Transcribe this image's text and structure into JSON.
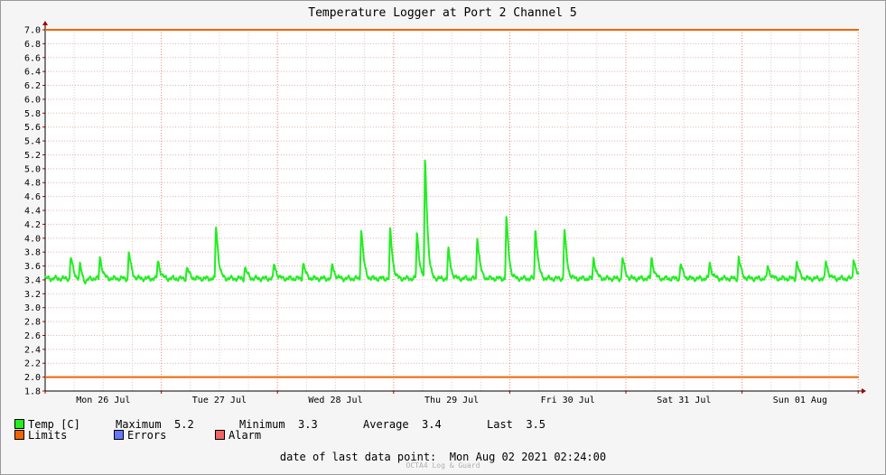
{
  "chart_data": {
    "type": "line",
    "title": "Temperature Logger at Port 2 Channel 5",
    "ylim": [
      1.8,
      7.0
    ],
    "yticks": [
      "7.0",
      "6.8",
      "6.6",
      "6.4",
      "6.2",
      "6.0",
      "5.8",
      "5.6",
      "5.4",
      "5.2",
      "5.0",
      "4.8",
      "4.6",
      "4.4",
      "4.2",
      "4.0",
      "3.8",
      "3.6",
      "3.4",
      "3.2",
      "3.0",
      "2.8",
      "2.6",
      "2.4",
      "2.2",
      "2.0",
      "1.8"
    ],
    "categories": [
      "Mon 26 Jul",
      "Tue 27 Jul",
      "Wed 28 Jul",
      "Thu 29 Jul",
      "Fri 30 Jul",
      "Sat 31 Jul",
      "Sun 01 Aug"
    ],
    "limits": [
      2.0,
      7.0
    ],
    "grid": true,
    "series": [
      {
        "name": "Temp [C]",
        "color": "#22ee22",
        "baseline": 3.42,
        "spikes": [
          {
            "t": 0.22,
            "v": 3.74
          },
          {
            "t": 0.3,
            "v": 3.62
          },
          {
            "t": 0.47,
            "v": 3.74
          },
          {
            "t": 0.72,
            "v": 3.8
          },
          {
            "t": 0.97,
            "v": 3.69
          },
          {
            "t": 1.22,
            "v": 3.58
          },
          {
            "t": 1.47,
            "v": 4.19
          },
          {
            "t": 1.72,
            "v": 3.58
          },
          {
            "t": 1.97,
            "v": 3.63
          },
          {
            "t": 2.22,
            "v": 3.65
          },
          {
            "t": 2.47,
            "v": 3.62
          },
          {
            "t": 2.72,
            "v": 4.15
          },
          {
            "t": 2.97,
            "v": 4.13
          },
          {
            "t": 3.2,
            "v": 4.09
          },
          {
            "t": 3.27,
            "v": 5.17
          },
          {
            "t": 3.47,
            "v": 3.85
          },
          {
            "t": 3.72,
            "v": 4.03
          },
          {
            "t": 3.97,
            "v": 4.3
          },
          {
            "t": 4.22,
            "v": 4.16
          },
          {
            "t": 4.47,
            "v": 4.14
          },
          {
            "t": 4.72,
            "v": 3.72
          },
          {
            "t": 4.97,
            "v": 3.72
          },
          {
            "t": 5.22,
            "v": 3.72
          },
          {
            "t": 5.47,
            "v": 3.63
          },
          {
            "t": 5.72,
            "v": 3.65
          },
          {
            "t": 5.97,
            "v": 3.73
          },
          {
            "t": 6.22,
            "v": 3.6
          },
          {
            "t": 6.47,
            "v": 3.66
          },
          {
            "t": 6.72,
            "v": 3.67
          },
          {
            "t": 6.96,
            "v": 3.72
          }
        ]
      }
    ],
    "colors": {
      "limits": "#ee6600",
      "errors": "#6677ff",
      "alarm": "#ee6666",
      "temp": "#22ee22"
    }
  },
  "legend": {
    "temp_label": "Temp [C]",
    "maximum_label": "Maximum",
    "maximum_value": "5.2",
    "minimum_label": "Minimum",
    "minimum_value": "3.3",
    "average_label": "Average",
    "average_value": "3.4",
    "last_label": "Last",
    "last_value": "3.5",
    "limits_label": "Limits",
    "errors_label": "Errors",
    "alarm_label": "Alarm"
  },
  "footer": {
    "label": "date of last data point:",
    "value": "Mon Aug 02 2021 02:24:00",
    "brand": "OCTA4 Log & Guard"
  }
}
